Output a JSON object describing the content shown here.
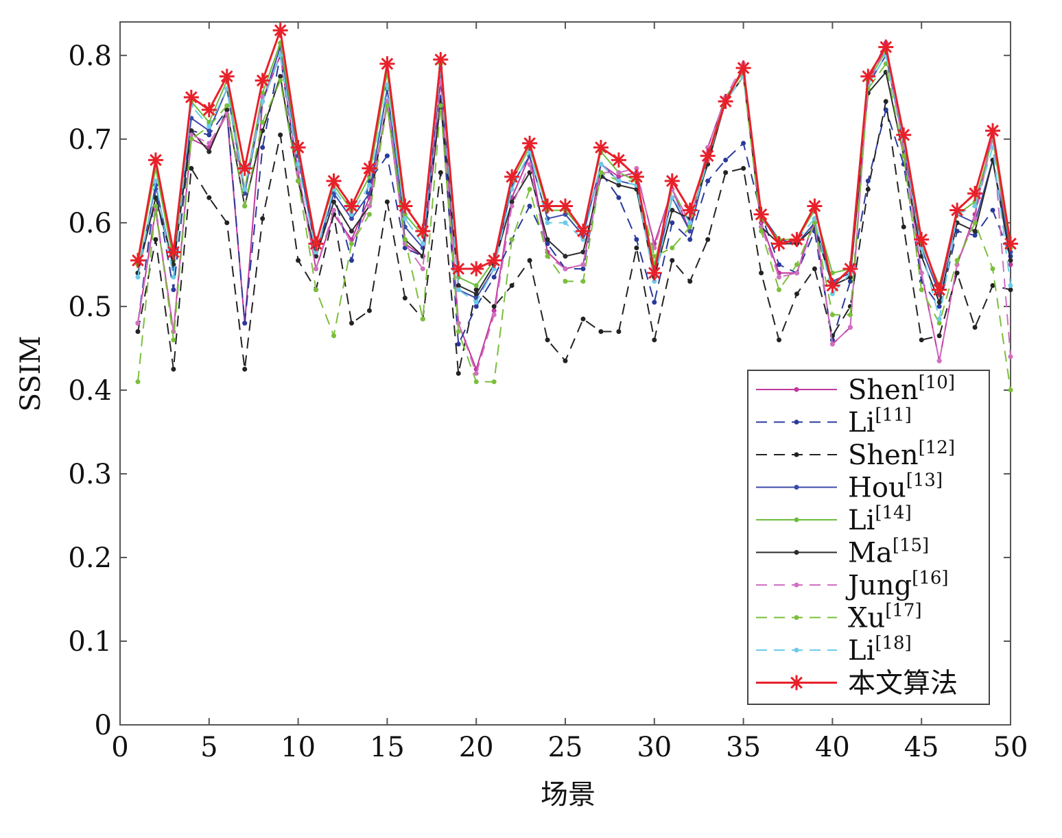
{
  "chart_data": {
    "type": "line",
    "title": "",
    "xlabel": "场景",
    "ylabel": "SSIM",
    "xlim": [
      0,
      50
    ],
    "ylim": [
      0,
      0.84
    ],
    "xticks": [
      "0",
      "5",
      "10",
      "15",
      "20",
      "25",
      "30",
      "35",
      "40",
      "45",
      "50"
    ],
    "yticks": [
      "0",
      "0.1",
      "0.2",
      "0.3",
      "0.4",
      "0.5",
      "0.6",
      "0.7",
      "0.8"
    ],
    "grid": false,
    "legend_position": "bottom-right",
    "x": [
      1,
      2,
      3,
      4,
      5,
      6,
      7,
      8,
      9,
      10,
      11,
      12,
      13,
      14,
      15,
      16,
      17,
      18,
      19,
      20,
      21,
      22,
      23,
      24,
      25,
      26,
      27,
      28,
      29,
      30,
      31,
      32,
      33,
      34,
      35,
      36,
      37,
      38,
      39,
      40,
      41,
      42,
      43,
      44,
      45,
      46,
      47,
      48,
      49,
      50
    ],
    "series": [
      {
        "name": "Shen",
        "ref": "[10]",
        "color": "#c0389c",
        "dash": false,
        "values": [
          0.48,
          0.615,
          0.47,
          0.7,
          0.69,
          0.73,
          0.48,
          0.745,
          0.8,
          0.66,
          0.545,
          0.61,
          0.58,
          0.63,
          0.74,
          0.575,
          0.56,
          0.77,
          0.48,
          0.425,
          0.495,
          0.63,
          0.68,
          0.565,
          0.545,
          0.55,
          0.67,
          0.655,
          0.66,
          0.575,
          0.64,
          0.59,
          0.69,
          0.75,
          0.78,
          0.6,
          0.54,
          0.54,
          0.605,
          0.455,
          0.475,
          0.77,
          0.815,
          0.69,
          0.54,
          0.435,
          0.55,
          0.61,
          0.71,
          0.55
        ]
      },
      {
        "name": "Li",
        "ref": "[11]",
        "color": "#2a3a9a",
        "dash": true,
        "values": [
          0.48,
          0.64,
          0.52,
          0.71,
          0.705,
          0.735,
          0.48,
          0.69,
          0.8,
          0.65,
          0.56,
          0.635,
          0.555,
          0.65,
          0.68,
          0.57,
          0.56,
          0.75,
          0.455,
          0.5,
          0.535,
          0.58,
          0.62,
          0.575,
          0.545,
          0.545,
          0.66,
          0.63,
          0.58,
          0.505,
          0.6,
          0.58,
          0.65,
          0.675,
          0.695,
          0.61,
          0.55,
          0.54,
          0.59,
          0.46,
          0.53,
          0.65,
          0.735,
          0.67,
          0.53,
          0.5,
          0.59,
          0.585,
          0.615,
          0.56
        ]
      },
      {
        "name": "Shen",
        "ref": "[12]",
        "color": "#222222",
        "dash": true,
        "values": [
          0.47,
          0.58,
          0.425,
          0.665,
          0.63,
          0.6,
          0.425,
          0.605,
          0.705,
          0.555,
          0.52,
          0.61,
          0.48,
          0.495,
          0.625,
          0.51,
          0.485,
          0.66,
          0.42,
          0.52,
          0.5,
          0.525,
          0.555,
          0.46,
          0.435,
          0.485,
          0.47,
          0.47,
          0.57,
          0.46,
          0.555,
          0.53,
          0.58,
          0.66,
          0.665,
          0.54,
          0.46,
          0.515,
          0.545,
          0.465,
          0.5,
          0.64,
          0.745,
          0.595,
          0.46,
          0.465,
          0.54,
          0.475,
          0.525,
          0.52
        ]
      },
      {
        "name": "Hou",
        "ref": "[13]",
        "color": "#3a4aaa",
        "dash": false,
        "values": [
          0.54,
          0.645,
          0.545,
          0.725,
          0.71,
          0.76,
          0.635,
          0.745,
          0.81,
          0.68,
          0.565,
          0.635,
          0.605,
          0.635,
          0.76,
          0.595,
          0.57,
          0.775,
          0.52,
          0.51,
          0.545,
          0.645,
          0.68,
          0.605,
          0.61,
          0.585,
          0.67,
          0.65,
          0.645,
          0.54,
          0.63,
          0.59,
          0.675,
          0.745,
          0.775,
          0.61,
          0.58,
          0.575,
          0.6,
          0.53,
          0.54,
          0.765,
          0.8,
          0.695,
          0.57,
          0.515,
          0.61,
          0.6,
          0.675,
          0.565
        ]
      },
      {
        "name": "Li",
        "ref": "[14]",
        "color": "#6cbd3c",
        "dash": false,
        "values": [
          0.55,
          0.665,
          0.555,
          0.745,
          0.72,
          0.77,
          0.64,
          0.755,
          0.815,
          0.685,
          0.575,
          0.645,
          0.615,
          0.655,
          0.78,
          0.61,
          0.585,
          0.79,
          0.535,
          0.525,
          0.555,
          0.65,
          0.69,
          0.615,
          0.615,
          0.59,
          0.685,
          0.66,
          0.65,
          0.55,
          0.64,
          0.6,
          0.68,
          0.75,
          0.78,
          0.605,
          0.58,
          0.58,
          0.615,
          0.54,
          0.545,
          0.77,
          0.805,
          0.7,
          0.575,
          0.525,
          0.61,
          0.625,
          0.7,
          0.57
        ]
      },
      {
        "name": "Ma",
        "ref": "[15]",
        "color": "#2a2a2a",
        "dash": false,
        "values": [
          0.54,
          0.63,
          0.55,
          0.71,
          0.685,
          0.735,
          0.62,
          0.71,
          0.775,
          0.65,
          0.56,
          0.625,
          0.59,
          0.62,
          0.745,
          0.58,
          0.56,
          0.745,
          0.525,
          0.515,
          0.55,
          0.625,
          0.66,
          0.58,
          0.56,
          0.565,
          0.655,
          0.645,
          0.64,
          0.535,
          0.615,
          0.605,
          0.67,
          0.745,
          0.775,
          0.595,
          0.575,
          0.575,
          0.595,
          0.525,
          0.535,
          0.755,
          0.78,
          0.68,
          0.56,
          0.505,
          0.6,
          0.59,
          0.675,
          0.555
        ]
      },
      {
        "name": "Jung",
        "ref": "[16]",
        "color": "#d070c0",
        "dash": true,
        "values": [
          0.48,
          0.62,
          0.47,
          0.705,
          0.695,
          0.73,
          0.64,
          0.75,
          0.8,
          0.66,
          0.545,
          0.615,
          0.575,
          0.62,
          0.745,
          0.575,
          0.545,
          0.77,
          0.48,
          0.42,
          0.49,
          0.62,
          0.67,
          0.56,
          0.545,
          0.55,
          0.66,
          0.66,
          0.665,
          0.57,
          0.64,
          0.6,
          0.69,
          0.75,
          0.79,
          0.595,
          0.535,
          0.54,
          0.6,
          0.455,
          0.475,
          0.765,
          0.81,
          0.69,
          0.54,
          0.435,
          0.55,
          0.605,
          0.705,
          0.44
        ]
      },
      {
        "name": "Xu",
        "ref": "[17]",
        "color": "#7abf3a",
        "dash": true,
        "values": [
          0.41,
          0.62,
          0.46,
          0.7,
          0.715,
          0.74,
          0.62,
          0.72,
          0.77,
          0.65,
          0.52,
          0.465,
          0.575,
          0.61,
          0.74,
          0.58,
          0.485,
          0.74,
          0.47,
          0.41,
          0.41,
          0.58,
          0.64,
          0.56,
          0.53,
          0.53,
          0.66,
          0.65,
          0.65,
          0.56,
          0.57,
          0.595,
          0.68,
          0.745,
          0.775,
          0.59,
          0.52,
          0.55,
          0.6,
          0.49,
          0.49,
          0.76,
          0.79,
          0.68,
          0.52,
          0.48,
          0.555,
          0.6,
          0.545,
          0.4
        ]
      },
      {
        "name": "Li",
        "ref": "[18]",
        "color": "#6ccbe8",
        "dash": true,
        "values": [
          0.535,
          0.65,
          0.535,
          0.74,
          0.715,
          0.76,
          0.64,
          0.745,
          0.8,
          0.67,
          0.565,
          0.64,
          0.61,
          0.645,
          0.765,
          0.605,
          0.575,
          0.785,
          0.52,
          0.505,
          0.545,
          0.64,
          0.685,
          0.6,
          0.6,
          0.58,
          0.67,
          0.65,
          0.645,
          0.53,
          0.63,
          0.6,
          0.675,
          0.745,
          0.775,
          0.61,
          0.575,
          0.58,
          0.605,
          0.515,
          0.54,
          0.765,
          0.8,
          0.7,
          0.57,
          0.485,
          0.61,
          0.62,
          0.69,
          0.525
        ]
      },
      {
        "name": "本文算法",
        "ref": "",
        "color": "#e8202a",
        "dash": false,
        "star": true,
        "values": [
          0.555,
          0.675,
          0.565,
          0.75,
          0.735,
          0.775,
          0.665,
          0.77,
          0.83,
          0.69,
          0.575,
          0.65,
          0.62,
          0.665,
          0.79,
          0.62,
          0.59,
          0.795,
          0.545,
          0.545,
          0.555,
          0.655,
          0.695,
          0.62,
          0.62,
          0.59,
          0.69,
          0.675,
          0.655,
          0.54,
          0.65,
          0.615,
          0.68,
          0.745,
          0.785,
          0.61,
          0.575,
          0.58,
          0.62,
          0.525,
          0.545,
          0.775,
          0.81,
          0.705,
          0.58,
          0.52,
          0.615,
          0.635,
          0.71,
          0.575
        ]
      }
    ]
  }
}
